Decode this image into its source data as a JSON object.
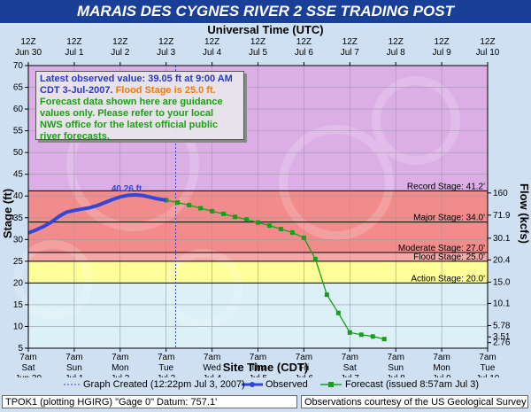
{
  "title": "MARAIS DES CYGNES RIVER 2 SSE TRADING POST",
  "top_axis_title": "Universal Time (UTC)",
  "bottom_axis_title": "Site Time (CDT)",
  "left_axis_title": "Stage (ft)",
  "right_axis_title": "Flow (kcfs)",
  "note": {
    "line1": "Latest observed value: 39.05 ft at 9:00 AM",
    "line2a": "CDT 3-Jul-2007.",
    "line2b": "Flood Stage is 25.0 ft.",
    "line3": "Forecast data shown here are guidance",
    "line4": "values only. Please refer to your local",
    "line5": "NWS office for the latest official public",
    "line6": "river forecasts."
  },
  "peak_label": "40.26 ft",
  "legend": {
    "created": "Graph Created (12:22pm Jul 3, 2007)",
    "observed": "Observed",
    "forecast": "Forecast (issued 8:57am Jul 3)"
  },
  "footer": {
    "left": "TPOK1 (plotting HGIRG)  \"Gage 0\" Datum: 757.1'",
    "right": "Observations courtesy of the  US Geological Survey"
  },
  "colors": {
    "record_zone": "#dcaee6",
    "major_zone": "#f28b8b",
    "moderate_zone": "#f5a8a8",
    "flood_zone": "#ffff99",
    "normal_zone": "#dcf0f8",
    "observed": "#3346d6",
    "forecast": "#1a9e1a"
  },
  "chart_data": {
    "type": "line",
    "ylim": [
      5,
      70
    ],
    "y_ticks": [
      5,
      10,
      15,
      20,
      25,
      30,
      35,
      40,
      45,
      50,
      55,
      60,
      65,
      70
    ],
    "x_range_hours": [
      0,
      240
    ],
    "top_ticks": [
      {
        "l1": "12Z",
        "l2": "Jun 30"
      },
      {
        "l1": "12Z",
        "l2": "Jul 1"
      },
      {
        "l1": "12Z",
        "l2": "Jul 2"
      },
      {
        "l1": "12Z",
        "l2": "Jul 3"
      },
      {
        "l1": "12Z",
        "l2": "Jul 4"
      },
      {
        "l1": "12Z",
        "l2": "Jul 5"
      },
      {
        "l1": "12Z",
        "l2": "Jul 6"
      },
      {
        "l1": "12Z",
        "l2": "Jul 7"
      },
      {
        "l1": "12Z",
        "l2": "Jul 8"
      },
      {
        "l1": "12Z",
        "l2": "Jul 9"
      },
      {
        "l1": "12Z",
        "l2": "Jul 10"
      }
    ],
    "bottom_ticks": [
      {
        "l1": "7am",
        "l2": "Sat",
        "l3": "Jun 30"
      },
      {
        "l1": "7am",
        "l2": "Sun",
        "l3": "Jul 1"
      },
      {
        "l1": "7am",
        "l2": "Mon",
        "l3": "Jul 2"
      },
      {
        "l1": "7am",
        "l2": "Tue",
        "l3": "Jul 3"
      },
      {
        "l1": "7am",
        "l2": "Wed",
        "l3": "Jul 4"
      },
      {
        "l1": "7am",
        "l2": "Thu",
        "l3": "Jul 5"
      },
      {
        "l1": "7am",
        "l2": "Fri",
        "l3": "Jul 6"
      },
      {
        "l1": "7am",
        "l2": "Sat",
        "l3": "Jul 7"
      },
      {
        "l1": "7am",
        "l2": "Sun",
        "l3": "Jul 8"
      },
      {
        "l1": "7am",
        "l2": "Mon",
        "l3": "Jul 9"
      },
      {
        "l1": "7am",
        "l2": "Tue",
        "l3": "Jul 10"
      }
    ],
    "flow_ticks": [
      {
        "stage": 40.7,
        "label": "160"
      },
      {
        "stage": 35.6,
        "label": "71.9"
      },
      {
        "stage": 30.3,
        "label": "30.1"
      },
      {
        "stage": 25.3,
        "label": "20.4"
      },
      {
        "stage": 20.2,
        "label": "15.0"
      },
      {
        "stage": 15.3,
        "label": "10.1"
      },
      {
        "stage": 10.2,
        "label": "5.78"
      },
      {
        "stage": 7.6,
        "label": "3.51"
      },
      {
        "stage": 6.3,
        "label": "2.76"
      }
    ],
    "stage_lines": [
      {
        "name": "Record Stage: 41.2'",
        "value": 41.2
      },
      {
        "name": "Major Stage: 34.0'",
        "value": 34.0
      },
      {
        "name": "Moderate Stage: 27.0'",
        "value": 27.0
      },
      {
        "name": "Flood Stage: 25.0'",
        "value": 25.0
      },
      {
        "name": "Action Stage: 20.0'",
        "value": 20.0
      }
    ],
    "graph_created_hour": 77,
    "observed": [
      [
        0,
        31.5
      ],
      [
        4,
        32.2
      ],
      [
        8,
        33.0
      ],
      [
        12,
        34.0
      ],
      [
        16,
        35.3
      ],
      [
        20,
        36.3
      ],
      [
        24,
        36.7
      ],
      [
        28,
        37.0
      ],
      [
        32,
        37.3
      ],
      [
        36,
        37.8
      ],
      [
        40,
        38.5
      ],
      [
        44,
        39.2
      ],
      [
        48,
        39.8
      ],
      [
        52,
        40.15
      ],
      [
        56,
        40.26
      ],
      [
        60,
        40.1
      ],
      [
        64,
        39.7
      ],
      [
        68,
        39.3
      ],
      [
        72,
        39.05
      ]
    ],
    "forecast": [
      [
        72,
        39.05
      ],
      [
        78,
        38.5
      ],
      [
        84,
        37.9
      ],
      [
        90,
        37.2
      ],
      [
        96,
        36.5
      ],
      [
        102,
        35.9
      ],
      [
        108,
        35.2
      ],
      [
        114,
        34.6
      ],
      [
        120,
        33.9
      ],
      [
        126,
        33.2
      ],
      [
        132,
        32.4
      ],
      [
        138,
        31.6
      ],
      [
        144,
        30.4
      ],
      [
        150,
        25.5
      ],
      [
        156,
        17.3
      ],
      [
        162,
        13.1
      ],
      [
        168,
        8.6
      ],
      [
        174,
        8.1
      ],
      [
        180,
        7.7
      ],
      [
        186,
        7.1
      ]
    ]
  }
}
